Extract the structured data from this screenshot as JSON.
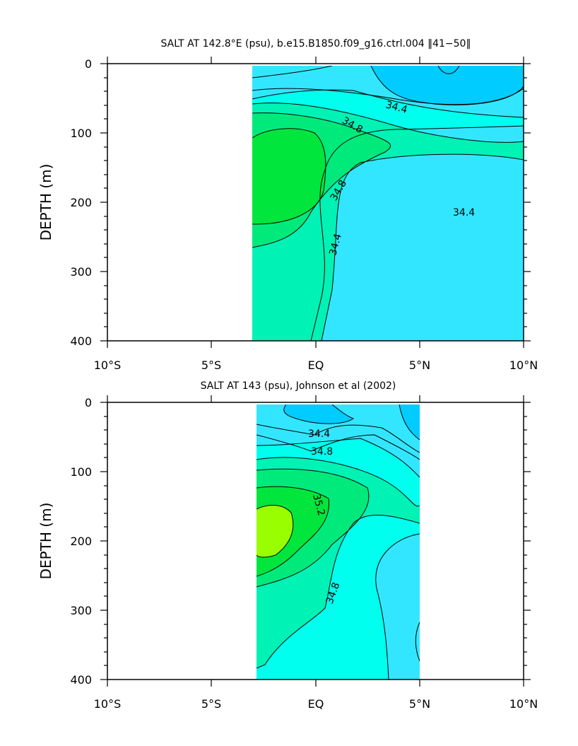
{
  "chart_data": [
    {
      "type": "contour",
      "title": "SALT AT 142.8°E (psu), b.e15.B1850.f09_g16.ctrl.004 ‖41−50‖",
      "ylabel": "DEPTH (m)",
      "xlabel": "",
      "x_range": [
        -10,
        10
      ],
      "y_range": [
        0,
        400
      ],
      "y_inverted": true,
      "x_ticks": [
        "10°S",
        "5°S",
        "EQ",
        "5°N",
        "10°N"
      ],
      "y_ticks": [
        "0",
        "100",
        "200",
        "300",
        "400"
      ],
      "data_extent_x": [
        -3.1,
        10
      ],
      "data_extent_y": [
        5,
        400
      ],
      "contour_interval": 0.2,
      "contour_labels": [
        "34.4",
        "34.8",
        "34.8",
        "34.4",
        "34.4"
      ],
      "colors": {
        "level_34_2": "#00ccff",
        "level_34_4": "#33e6ff",
        "level_34_6": "#00ffee",
        "level_34_8": "#00f2b5",
        "level_35_0": "#00ea7c",
        "level_35_2": "#00e63d"
      }
    },
    {
      "type": "contour",
      "title": "SALT AT 143 (psu), Johnson et al (2002)",
      "ylabel": "DEPTH (m)",
      "xlabel": "",
      "x_range": [
        -10,
        10
      ],
      "y_range": [
        0,
        400
      ],
      "y_inverted": true,
      "x_ticks": [
        "10°S",
        "5°S",
        "EQ",
        "5°N",
        "10°N"
      ],
      "y_ticks": [
        "0",
        "100",
        "200",
        "300",
        "400"
      ],
      "data_extent_x": [
        -2.8,
        5
      ],
      "data_extent_y": [
        5,
        400
      ],
      "contour_interval": 0.2,
      "contour_labels": [
        "34.4",
        "34.8",
        "35.2",
        "34.8"
      ],
      "colors": {
        "level_34_2": "#00ccff",
        "level_34_4": "#33e6ff",
        "level_34_6": "#00ffee",
        "level_34_8": "#00f2b5",
        "level_35_0": "#00ea7c",
        "level_35_2": "#00e63d",
        "level_35_4": "#99ff00"
      }
    }
  ]
}
